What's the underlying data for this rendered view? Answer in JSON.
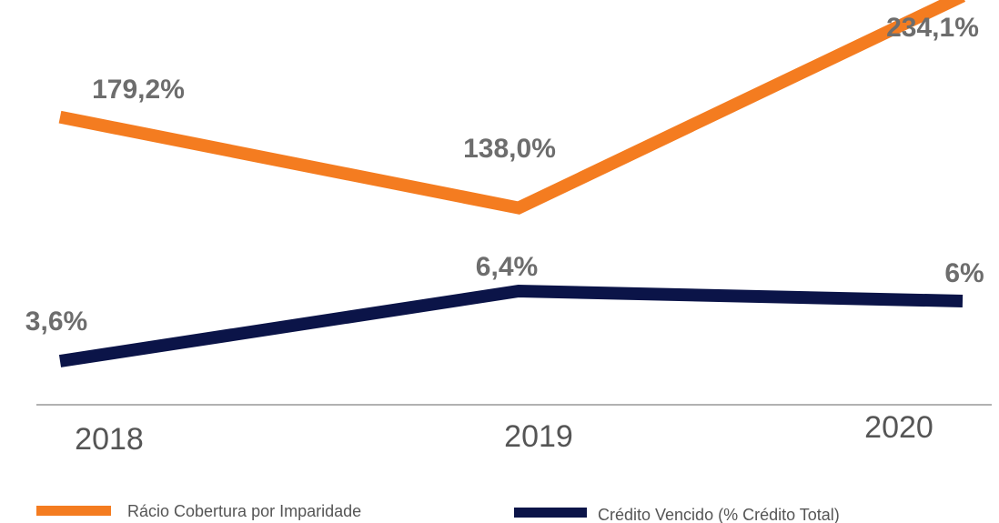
{
  "chart_data": {
    "type": "line",
    "categories": [
      "2018",
      "2019",
      "2020"
    ],
    "series": [
      {
        "name": "Rácio Cobertura por Imparidade",
        "color": "#f47c20",
        "values": [
          179.2,
          138.0,
          234.1
        ],
        "value_labels": [
          "179,2%",
          "138,0%",
          "234,1%"
        ]
      },
      {
        "name": "Crédito Vencido (% Crédito Total)",
        "color": "#0b1448",
        "axis": "y2",
        "values": [
          3.6,
          6.4,
          6
        ],
        "value_labels": [
          "3,6%",
          "6,4%",
          "6%"
        ]
      }
    ],
    "ylim": [
      50,
      250
    ],
    "y2lim": [
      0,
      10
    ]
  }
}
